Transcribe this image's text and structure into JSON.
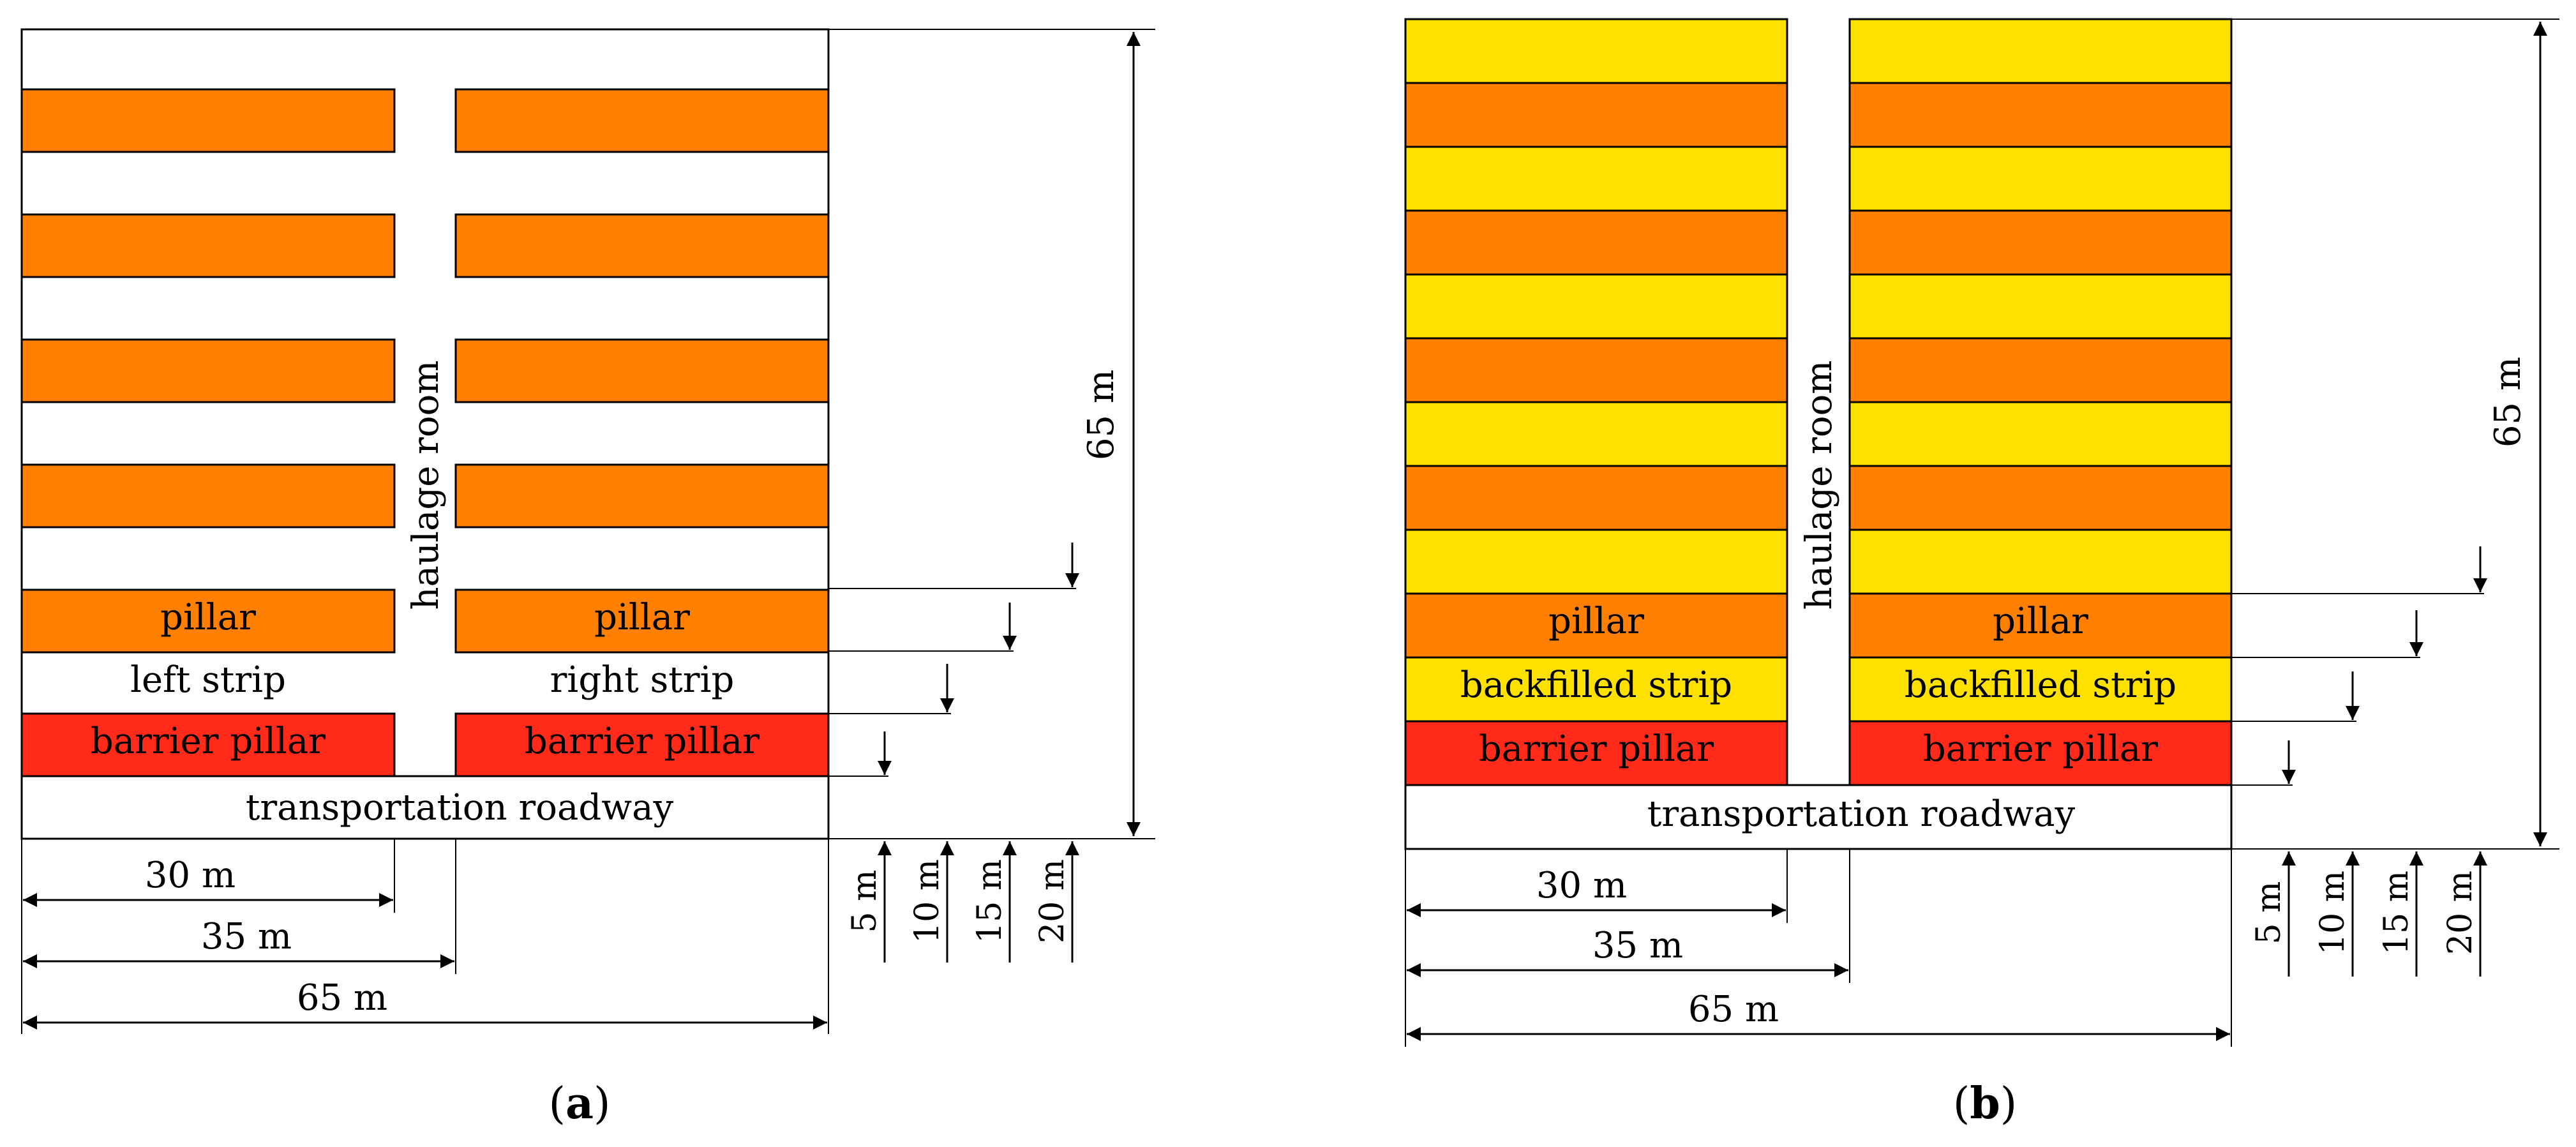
{
  "colors": {
    "pillar": "#FF8000",
    "barrier_pillar": "#FF2A1A",
    "backfill": "#FFE100",
    "outline": "#000000",
    "background": "#FFFFFF"
  },
  "panel_a": {
    "caption_label": "a",
    "haulage_label": "haulage room",
    "pillar_label": "pillar",
    "left_strip_label": "left strip",
    "right_strip_label": "right strip",
    "barrier_label": "barrier pillar",
    "roadway_label": "transportation roadway",
    "dim_height": "65 m",
    "dim_30": "30 m",
    "dim_35": "35 m",
    "dim_65": "65 m",
    "dim_5": "5 m",
    "dim_10": "10 m",
    "dim_15": "15 m",
    "dim_20": "20 m"
  },
  "panel_b": {
    "caption_label": "b",
    "haulage_label": "haulage room",
    "pillar_label": "pillar",
    "backfill_label": "backfilled strip",
    "barrier_label": "barrier pillar",
    "roadway_label": "transportation roadway",
    "dim_height": "65 m",
    "dim_30": "30 m",
    "dim_35": "35 m",
    "dim_65": "65 m",
    "dim_5": "5 m",
    "dim_10": "10 m",
    "dim_15": "15 m",
    "dim_20": "20 m"
  }
}
